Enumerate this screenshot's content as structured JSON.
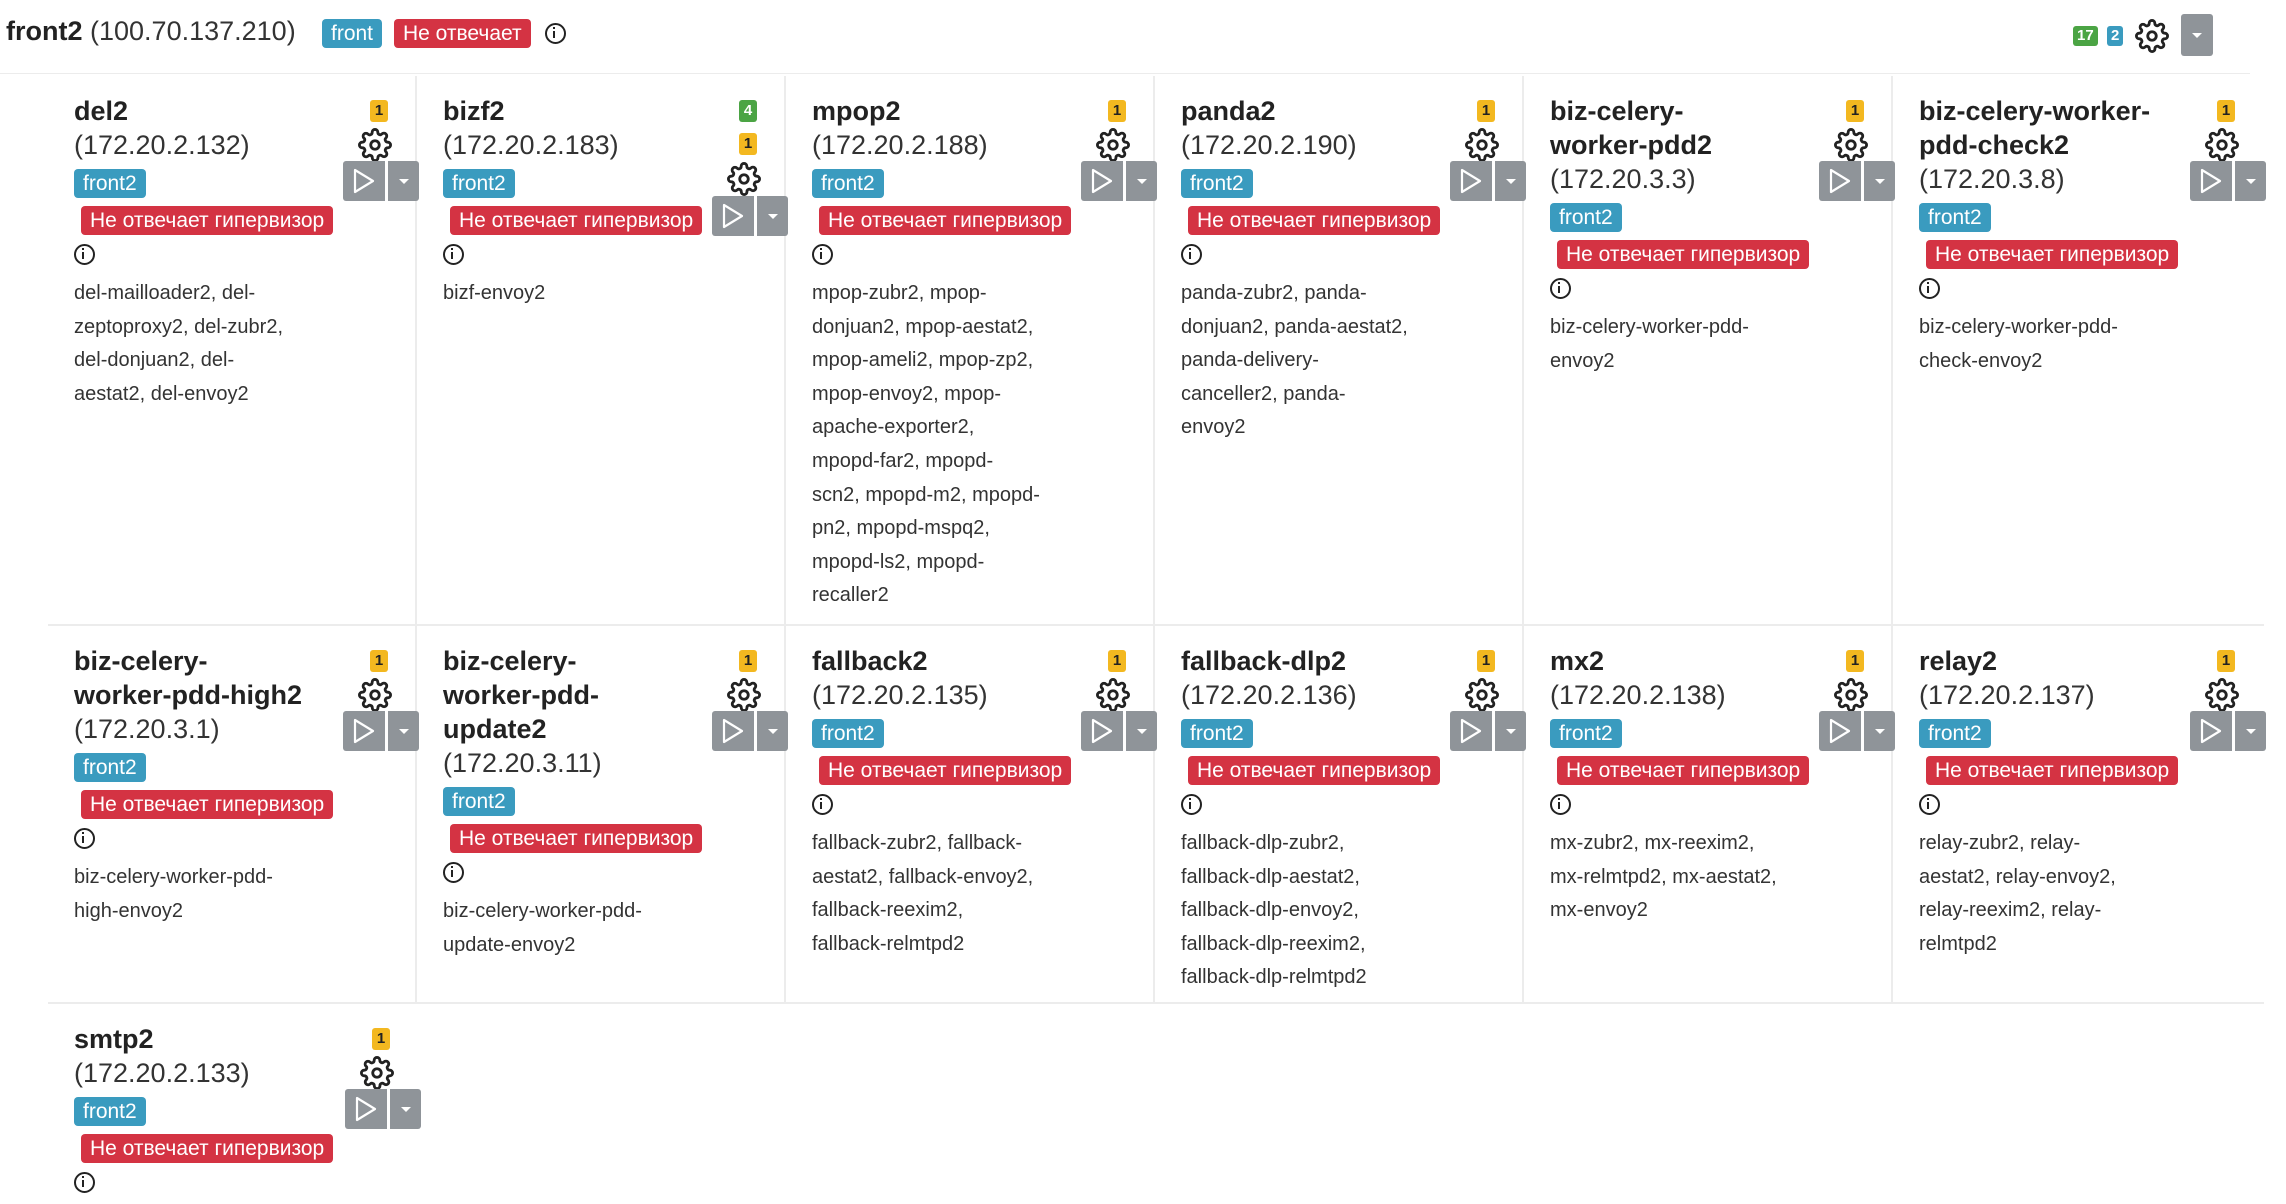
{
  "header": {
    "host_name": "front2",
    "host_ip": "(100.70.137.210)",
    "role_badge": "front",
    "status_badge": "Не отвечает",
    "count_green": "17",
    "count_blue": "2"
  },
  "colors": {
    "role_blue": "#3a9bbf",
    "status_red": "#d43343",
    "count_yellow": "#f3b820",
    "count_green": "#4ba444",
    "button_gray": "#8f9499"
  },
  "cards": [
    {
      "name": "del2",
      "ip": "(172.20.2.132)",
      "role": "front2",
      "status": "Не отвечает гипервизор",
      "count": "1",
      "services": "del-mailloader2, del-zeptoproxy2, del-zubr2, del-donjuan2, del-aestat2, del-envoy2"
    },
    {
      "name": "bizf2",
      "ip": "(172.20.2.183)",
      "role": "front2",
      "status": "Не отвечает гипервизор",
      "count": "4",
      "count2": "1",
      "services": "bizf-envoy2"
    },
    {
      "name": "mpop2",
      "ip": "(172.20.2.188)",
      "role": "front2",
      "status": "Не отвечает гипервизор",
      "count": "1",
      "services": "mpop-zubr2, mpop-donjuan2, mpop-aestat2, mpop-ameli2, mpop-zp2, mpop-envoy2, mpop-apache-exporter2, mpopd-far2, mpopd-scn2, mpopd-m2, mpopd-pn2, mpopd-mspq2, mpopd-ls2, mpopd-recaller2"
    },
    {
      "name": "panda2",
      "ip": "(172.20.2.190)",
      "role": "front2",
      "status": "Не отвечает гипервизор",
      "count": "1",
      "services": "panda-zubr2, panda-donjuan2, panda-aestat2, panda-delivery-canceller2, panda-envoy2"
    },
    {
      "name": "biz-celery-worker-pdd2",
      "ip": "(172.20.3.3)",
      "role": "front2",
      "status": "Не отвечает гипервизор",
      "count": "1",
      "services": "biz-celery-worker-pdd-envoy2"
    },
    {
      "name": "biz-celery-worker-pdd-check2",
      "ip": "(172.20.3.8)",
      "role": "front2",
      "status": "Не отвечает гипервизор",
      "count": "1",
      "services": "biz-celery-worker-pdd-check-envoy2"
    },
    {
      "name": "biz-celery-worker-pdd-high2",
      "ip": "(172.20.3.1)",
      "role": "front2",
      "status": "Не отвечает гипервизор",
      "count": "1",
      "services": "biz-celery-worker-pdd-high-envoy2"
    },
    {
      "name": "biz-celery-worker-pdd-update2",
      "ip": "(172.20.3.11)",
      "role": "front2",
      "status": "Не отвечает гипервизор",
      "count": "1",
      "services": "biz-celery-worker-pdd-update-envoy2"
    },
    {
      "name": "fallback2",
      "ip": "(172.20.2.135)",
      "role": "front2",
      "status": "Не отвечает гипервизор",
      "count": "1",
      "services": "fallback-zubr2, fallback-aestat2, fallback-envoy2, fallback-reexim2, fallback-relmtpd2"
    },
    {
      "name": "fallback-dlp2",
      "ip": "(172.20.2.136)",
      "role": "front2",
      "status": "Не отвечает гипервизор",
      "count": "1",
      "services": "fallback-dlp-zubr2, fallback-dlp-aestat2, fallback-dlp-envoy2, fallback-dlp-reexim2, fallback-dlp-relmtpd2"
    },
    {
      "name": "mx2",
      "ip": "(172.20.2.138)",
      "role": "front2",
      "status": "Не отвечает гипервизор",
      "count": "1",
      "services": "mx-zubr2, mx-reexim2, mx-relmtpd2, mx-aestat2, mx-envoy2"
    },
    {
      "name": "relay2",
      "ip": "(172.20.2.137)",
      "role": "front2",
      "status": "Не отвечает гипервизор",
      "count": "1",
      "services": "relay-zubr2, relay-aestat2, relay-envoy2, relay-reexim2, relay-relmtpd2"
    },
    {
      "name": "smtp2",
      "ip": "(172.20.2.133)",
      "role": "front2",
      "status": "Не отвечает гипервизор",
      "count": "1",
      "services": ""
    }
  ]
}
